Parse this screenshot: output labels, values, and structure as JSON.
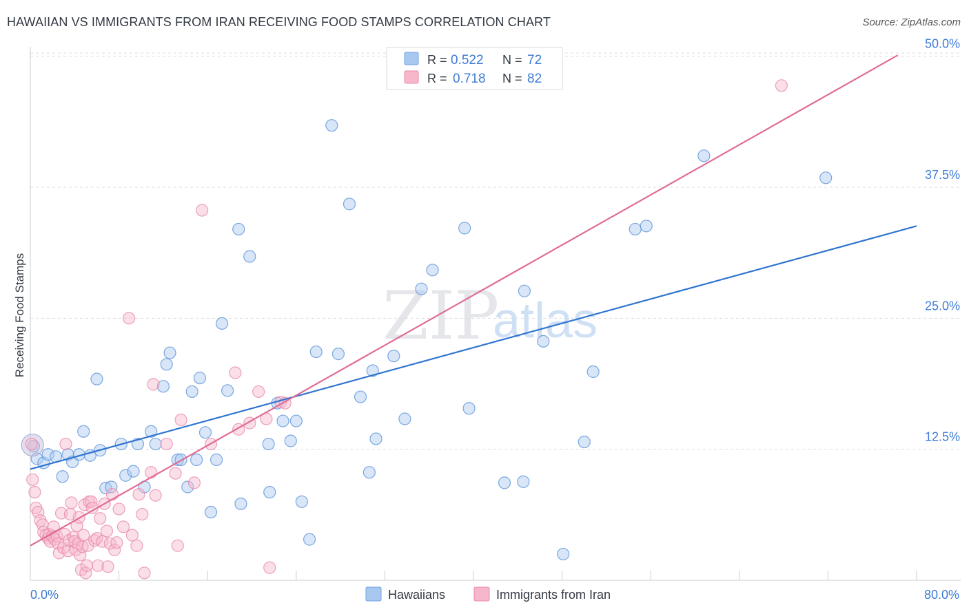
{
  "header": {
    "title": "HAWAIIAN VS IMMIGRANTS FROM IRAN RECEIVING FOOD STAMPS CORRELATION CHART",
    "source": "Source: ZipAtlas.com"
  },
  "watermark": {
    "zip": "ZIP",
    "atlas": "atlas"
  },
  "colors": {
    "blue": "#2f74cf",
    "pink": "#e06b94",
    "blue_fill": "#a9c8f0",
    "pink_fill": "#f6b7cb",
    "tick_label": "#3d7bd6"
  },
  "legend": {
    "items": [
      {
        "r_label": "R =",
        "r_value": "0.522",
        "n_label": "N =",
        "n_value": "72"
      },
      {
        "r_label": "R =",
        "r_value": "0.718",
        "n_label": "N =",
        "n_value": "82"
      }
    ]
  },
  "chart_data": {
    "type": "scatter",
    "title": "HAWAIIAN VS IMMIGRANTS FROM IRAN RECEIVING FOOD STAMPS CORRELATION CHART",
    "xlabel": "",
    "ylabel": "Receiving Food Stamps",
    "xlim": [
      0,
      80
    ],
    "ylim": [
      0,
      53
    ],
    "x_tick_labels": [
      "0.0%",
      "80.0%"
    ],
    "y_ticks": [
      12.5,
      25.0,
      37.5,
      50.0
    ],
    "y_tick_labels": [
      "12.5%",
      "25.0%",
      "37.5%",
      "50.0%"
    ],
    "grid": "horizontal dashed",
    "legend_position": "top-center",
    "bottom_legend": [
      "Hawaiians",
      "Immigrants from Iran"
    ],
    "series": [
      {
        "name": "Hawaiians",
        "color": "#2f74cf",
        "trend": {
          "x": [
            0,
            80
          ],
          "y": [
            10.6,
            33.8
          ]
        },
        "points": [
          [
            0.3,
            12.8
          ],
          [
            0.6,
            11.6
          ],
          [
            1.2,
            11.2
          ],
          [
            1.6,
            12.0
          ],
          [
            2.3,
            11.8
          ],
          [
            2.9,
            9.9
          ],
          [
            3.4,
            12.0
          ],
          [
            3.8,
            11.3
          ],
          [
            4.4,
            12.0
          ],
          [
            4.8,
            14.2
          ],
          [
            5.4,
            11.9
          ],
          [
            6.0,
            19.2
          ],
          [
            6.3,
            12.4
          ],
          [
            6.8,
            8.8
          ],
          [
            7.3,
            8.9
          ],
          [
            8.2,
            13.0
          ],
          [
            8.6,
            10.0
          ],
          [
            9.3,
            10.4
          ],
          [
            9.7,
            13.0
          ],
          [
            10.3,
            8.9
          ],
          [
            10.9,
            14.2
          ],
          [
            11.3,
            13.0
          ],
          [
            12.0,
            18.5
          ],
          [
            12.3,
            20.6
          ],
          [
            12.6,
            21.7
          ],
          [
            13.3,
            11.5
          ],
          [
            13.6,
            11.5
          ],
          [
            14.2,
            8.9
          ],
          [
            14.6,
            18.0
          ],
          [
            15.0,
            11.5
          ],
          [
            15.3,
            19.3
          ],
          [
            15.8,
            14.1
          ],
          [
            16.3,
            6.5
          ],
          [
            16.8,
            11.5
          ],
          [
            17.3,
            24.5
          ],
          [
            17.8,
            18.1
          ],
          [
            18.8,
            33.5
          ],
          [
            19.0,
            7.3
          ],
          [
            19.8,
            30.9
          ],
          [
            21.5,
            13.0
          ],
          [
            21.6,
            8.4
          ],
          [
            22.3,
            16.9
          ],
          [
            22.8,
            15.2
          ],
          [
            23.5,
            13.3
          ],
          [
            24.0,
            15.2
          ],
          [
            24.5,
            7.5
          ],
          [
            25.2,
            3.9
          ],
          [
            25.8,
            21.8
          ],
          [
            27.2,
            43.4
          ],
          [
            27.8,
            21.6
          ],
          [
            28.8,
            35.9
          ],
          [
            29.8,
            17.5
          ],
          [
            30.6,
            10.3
          ],
          [
            30.9,
            20.0
          ],
          [
            31.2,
            13.5
          ],
          [
            32.8,
            21.4
          ],
          [
            33.8,
            15.4
          ],
          [
            35.3,
            27.8
          ],
          [
            36.3,
            29.6
          ],
          [
            39.2,
            33.6
          ],
          [
            39.6,
            16.4
          ],
          [
            42.8,
            9.3
          ],
          [
            44.5,
            9.4
          ],
          [
            44.6,
            27.6
          ],
          [
            46.3,
            22.8
          ],
          [
            48.1,
            2.5
          ],
          [
            50.0,
            13.2
          ],
          [
            50.8,
            19.9
          ],
          [
            54.6,
            33.5
          ],
          [
            55.6,
            33.8
          ],
          [
            60.8,
            40.5
          ],
          [
            71.8,
            38.4
          ]
        ]
      },
      {
        "name": "Immigrants from Iran",
        "color": "#e06b94",
        "trend": {
          "x": [
            0,
            78.3
          ],
          "y": [
            3.3,
            50.1
          ]
        },
        "points": [
          [
            0.2,
            9.6
          ],
          [
            0.4,
            8.4
          ],
          [
            0.5,
            6.9
          ],
          [
            0.7,
            6.5
          ],
          [
            0.9,
            5.7
          ],
          [
            1.1,
            5.3
          ],
          [
            1.2,
            4.6
          ],
          [
            1.4,
            4.3
          ],
          [
            1.6,
            4.0
          ],
          [
            1.7,
            4.4
          ],
          [
            1.8,
            3.7
          ],
          [
            2.0,
            4.2
          ],
          [
            2.1,
            5.1
          ],
          [
            2.2,
            3.9
          ],
          [
            2.4,
            4.2
          ],
          [
            2.5,
            3.5
          ],
          [
            2.6,
            2.6
          ],
          [
            2.8,
            6.4
          ],
          [
            3.0,
            3.1
          ],
          [
            3.1,
            4.4
          ],
          [
            3.2,
            13.0
          ],
          [
            3.4,
            2.8
          ],
          [
            3.5,
            3.8
          ],
          [
            3.6,
            6.3
          ],
          [
            3.7,
            7.4
          ],
          [
            3.9,
            4.1
          ],
          [
            4.0,
            3.7
          ],
          [
            4.1,
            2.9
          ],
          [
            4.2,
            5.2
          ],
          [
            4.3,
            3.5
          ],
          [
            4.4,
            6.0
          ],
          [
            4.5,
            2.4
          ],
          [
            4.6,
            1.0
          ],
          [
            4.7,
            3.2
          ],
          [
            4.8,
            4.3
          ],
          [
            4.9,
            7.2
          ],
          [
            5.0,
            0.7
          ],
          [
            5.1,
            1.4
          ],
          [
            5.2,
            3.3
          ],
          [
            5.3,
            7.5
          ],
          [
            5.5,
            7.5
          ],
          [
            5.6,
            6.9
          ],
          [
            5.8,
            3.8
          ],
          [
            6.0,
            4.0
          ],
          [
            6.1,
            1.4
          ],
          [
            6.3,
            5.9
          ],
          [
            6.5,
            3.7
          ],
          [
            6.7,
            7.3
          ],
          [
            6.9,
            4.7
          ],
          [
            7.0,
            1.3
          ],
          [
            7.2,
            3.5
          ],
          [
            7.4,
            8.2
          ],
          [
            7.6,
            2.9
          ],
          [
            7.8,
            3.6
          ],
          [
            8.0,
            6.8
          ],
          [
            8.4,
            5.1
          ],
          [
            8.9,
            25.0
          ],
          [
            9.2,
            4.3
          ],
          [
            9.6,
            3.3
          ],
          [
            9.8,
            8.2
          ],
          [
            10.1,
            6.3
          ],
          [
            10.3,
            0.7
          ],
          [
            10.9,
            10.3
          ],
          [
            11.1,
            18.7
          ],
          [
            11.3,
            8.1
          ],
          [
            12.3,
            13.0
          ],
          [
            13.1,
            10.2
          ],
          [
            13.3,
            3.3
          ],
          [
            13.6,
            15.3
          ],
          [
            14.8,
            9.3
          ],
          [
            15.5,
            35.3
          ],
          [
            16.3,
            13.0
          ],
          [
            18.5,
            19.8
          ],
          [
            18.8,
            14.4
          ],
          [
            19.8,
            15.0
          ],
          [
            20.6,
            18.0
          ],
          [
            21.3,
            15.4
          ],
          [
            21.6,
            1.2
          ],
          [
            22.6,
            17.0
          ],
          [
            23.0,
            16.9
          ],
          [
            67.8,
            47.2
          ],
          [
            0.1,
            13.0
          ]
        ]
      }
    ]
  }
}
